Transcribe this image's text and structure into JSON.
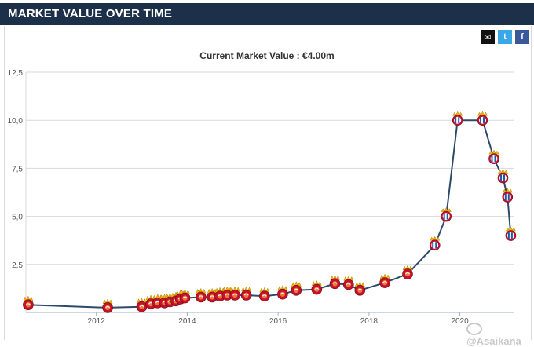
{
  "header": {
    "title": "MARKET VALUE OVER TIME"
  },
  "share": {
    "email_icon": "envelope-icon",
    "twitter_icon": "twitter-icon",
    "facebook_icon": "facebook-icon",
    "email_glyph": "✉",
    "twitter_glyph": "t",
    "facebook_glyph": "f"
  },
  "subtitle": "Current Market Value : €4.00m",
  "watermark": {
    "text": "@Asaikana"
  },
  "colors": {
    "header_bg": "#1d3049",
    "line": "#2e4a6b",
    "grid": "#d8d8d8",
    "axis_text": "#555555",
    "crest_red": "#c8102e",
    "crest_gold": "#f0b400",
    "crest_blue": "#1e5aa8"
  },
  "chart_data": {
    "type": "line",
    "title": "",
    "xlabel": "",
    "ylabel": "",
    "xlim": [
      2010.45,
      2021.2
    ],
    "ylim": [
      0,
      12.5
    ],
    "y_ticks": [
      2.5,
      5.0,
      7.5,
      10.0,
      12.5
    ],
    "y_tick_labels": [
      "2,5",
      "5,0",
      "7,5",
      "10,0",
      "12,5"
    ],
    "x_ticks": [
      2012,
      2014,
      2016,
      2018,
      2020
    ],
    "x_tick_labels": [
      "2012",
      "2014",
      "2016",
      "2018",
      "2020"
    ],
    "grid": true,
    "series": [
      {
        "values": [
          {
            "x": 2010.5,
            "y": 0.4,
            "club": "A"
          },
          {
            "x": 2012.25,
            "y": 0.25,
            "club": "A"
          },
          {
            "x": 2013.0,
            "y": 0.3,
            "club": "A"
          },
          {
            "x": 2013.2,
            "y": 0.45,
            "club": "A"
          },
          {
            "x": 2013.35,
            "y": 0.5,
            "club": "A"
          },
          {
            "x": 2013.5,
            "y": 0.5,
            "club": "A"
          },
          {
            "x": 2013.62,
            "y": 0.55,
            "club": "A"
          },
          {
            "x": 2013.75,
            "y": 0.6,
            "club": "A"
          },
          {
            "x": 2013.85,
            "y": 0.7,
            "club": "A"
          },
          {
            "x": 2013.95,
            "y": 0.75,
            "club": "A"
          },
          {
            "x": 2014.3,
            "y": 0.8,
            "club": "A"
          },
          {
            "x": 2014.55,
            "y": 0.8,
            "club": "A"
          },
          {
            "x": 2014.72,
            "y": 0.85,
            "club": "A"
          },
          {
            "x": 2014.88,
            "y": 0.9,
            "club": "A"
          },
          {
            "x": 2015.05,
            "y": 0.9,
            "club": "A"
          },
          {
            "x": 2015.3,
            "y": 0.9,
            "club": "A"
          },
          {
            "x": 2015.7,
            "y": 0.85,
            "club": "A"
          },
          {
            "x": 2016.1,
            "y": 0.95,
            "club": "A"
          },
          {
            "x": 2016.4,
            "y": 1.15,
            "club": "A"
          },
          {
            "x": 2016.85,
            "y": 1.2,
            "club": "A"
          },
          {
            "x": 2017.25,
            "y": 1.5,
            "club": "A"
          },
          {
            "x": 2017.55,
            "y": 1.45,
            "club": "A"
          },
          {
            "x": 2017.8,
            "y": 1.15,
            "club": "A"
          },
          {
            "x": 2018.35,
            "y": 1.55,
            "club": "A"
          },
          {
            "x": 2018.85,
            "y": 2.0,
            "club": "A"
          },
          {
            "x": 2019.45,
            "y": 3.5,
            "club": "B"
          },
          {
            "x": 2019.7,
            "y": 5.0,
            "club": "B"
          },
          {
            "x": 2019.95,
            "y": 10.0,
            "club": "B"
          },
          {
            "x": 2020.5,
            "y": 10.0,
            "club": "B"
          },
          {
            "x": 2020.75,
            "y": 8.0,
            "club": "B"
          },
          {
            "x": 2020.95,
            "y": 7.0,
            "club": "B"
          },
          {
            "x": 2021.05,
            "y": 6.0,
            "club": "B"
          },
          {
            "x": 2021.12,
            "y": 4.0,
            "club": "B"
          }
        ]
      }
    ]
  }
}
